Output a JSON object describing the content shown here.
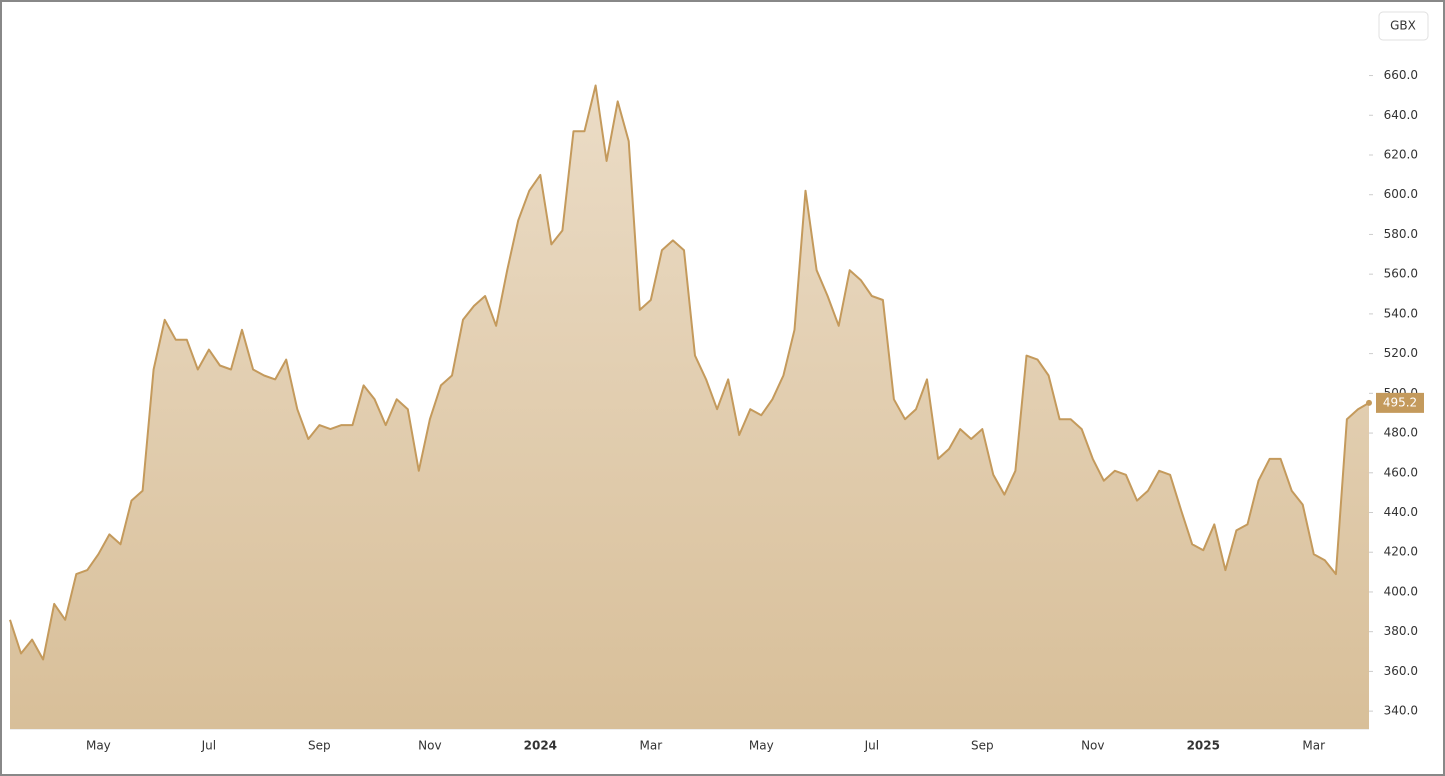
{
  "chart_data": {
    "type": "area",
    "currency": "GBX",
    "categories": [
      null,
      null,
      null,
      null,
      null,
      null,
      null,
      null,
      "May",
      null,
      null,
      null,
      null,
      null,
      null,
      null,
      null,
      null,
      "Jul",
      null,
      null,
      null,
      null,
      null,
      null,
      null,
      null,
      null,
      "Sep",
      null,
      null,
      null,
      null,
      null,
      null,
      null,
      null,
      null,
      "Nov",
      null,
      null,
      null,
      null,
      null,
      null,
      null,
      null,
      null,
      "2024",
      null,
      null,
      null,
      null,
      null,
      null,
      null,
      null,
      null,
      "Mar",
      null,
      null,
      null,
      null,
      null,
      null,
      null,
      null,
      null,
      "May",
      null,
      null,
      null,
      null,
      null,
      null,
      null,
      null,
      null,
      "Jul",
      null,
      null,
      null,
      null,
      null,
      null,
      null,
      null,
      null,
      "Sep",
      null,
      null,
      null,
      null,
      null,
      null,
      null,
      null,
      null,
      "Nov",
      null,
      null,
      null,
      null,
      null,
      null,
      null,
      null,
      null,
      "2025",
      null,
      null,
      null,
      null,
      null,
      null,
      null,
      null,
      null,
      "Mar",
      null,
      null,
      null,
      null,
      null
    ],
    "values": [
      386,
      369,
      376,
      366,
      394,
      386,
      409,
      411,
      419,
      429,
      424,
      446,
      451,
      512,
      537,
      527,
      527,
      512,
      522,
      514,
      512,
      532,
      512,
      509,
      507,
      517,
      492,
      477,
      484,
      482,
      484,
      484,
      504,
      497,
      484,
      497,
      492,
      461,
      487,
      504,
      509,
      537,
      544,
      549,
      534,
      562,
      587,
      602,
      610,
      575,
      582,
      632,
      632,
      655,
      617,
      647,
      627,
      542,
      547,
      572,
      577,
      572,
      519,
      507,
      492,
      507,
      479,
      492,
      489,
      497,
      509,
      532,
      602,
      562,
      549,
      534,
      562,
      557,
      549,
      547,
      497,
      487,
      492,
      507,
      467,
      472,
      482,
      477,
      482,
      459,
      449,
      461,
      519,
      517,
      509,
      487,
      487,
      482,
      467,
      456,
      461,
      459,
      446,
      451,
      461,
      459,
      441,
      424,
      421,
      434,
      411,
      431,
      434,
      456,
      467,
      467,
      451,
      444,
      419,
      416,
      409,
      487,
      492,
      495.2
    ],
    "color": "#c49a5c",
    "ylim": [
      331,
      693
    ],
    "yticks": [
      {
        "value": 340,
        "label": "340.0"
      },
      {
        "value": 360,
        "label": "360.0"
      },
      {
        "value": 380,
        "label": "380.0"
      },
      {
        "value": 400,
        "label": "400.0"
      },
      {
        "value": 420,
        "label": "420.0"
      },
      {
        "value": 440,
        "label": "440.0"
      },
      {
        "value": 460,
        "label": "460.0"
      },
      {
        "value": 480,
        "label": "480.0"
      },
      {
        "value": 500,
        "label": "500.0"
      },
      {
        "value": 520,
        "label": "520.0"
      },
      {
        "value": 540,
        "label": "540.0"
      },
      {
        "value": 560,
        "label": "560.0"
      },
      {
        "value": 580,
        "label": "580.0"
      },
      {
        "value": 600,
        "label": "600.0"
      },
      {
        "value": 620,
        "label": "620.0"
      },
      {
        "value": 640,
        "label": "640.0"
      },
      {
        "value": 660,
        "label": "660.0"
      }
    ],
    "grid": false
  }
}
